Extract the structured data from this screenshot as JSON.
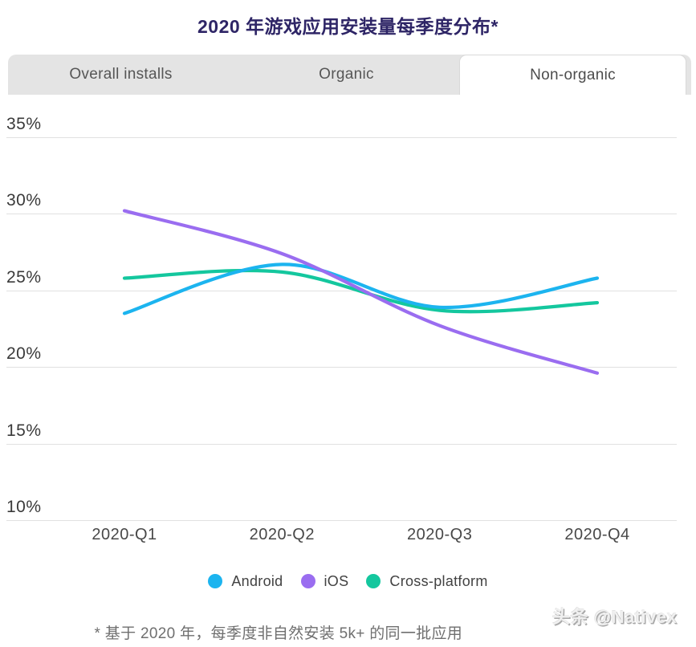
{
  "header": {
    "title": "2020 年游戏应用安装量每季度分布*"
  },
  "tabs": {
    "items": [
      {
        "label": "Overall installs",
        "active": false
      },
      {
        "label": "Organic",
        "active": false
      },
      {
        "label": "Non-organic",
        "active": true
      }
    ]
  },
  "chart_data": {
    "type": "line",
    "title": "2020 年游戏应用安装量每季度分布*",
    "categories": [
      "2020-Q1",
      "2020-Q2",
      "2020-Q3",
      "2020-Q4"
    ],
    "series": [
      {
        "name": "Android",
        "color": "#1cb4ef",
        "values": [
          23.5,
          26.7,
          23.9,
          25.8
        ]
      },
      {
        "name": "iOS",
        "color": "#9a6df0",
        "values": [
          30.2,
          27.4,
          22.7,
          19.6
        ]
      },
      {
        "name": "Cross-platform",
        "color": "#14c79e",
        "values": [
          25.8,
          26.2,
          23.7,
          24.2
        ]
      }
    ],
    "yticks": [
      35,
      30,
      25,
      20,
      15,
      10
    ],
    "ytick_suffix": "%",
    "ylim": [
      10,
      35
    ],
    "xlabel": "",
    "ylabel": "",
    "grid": true,
    "legend_position": "bottom"
  },
  "footnote": {
    "text": "* 基于 2020 年，每季度非自然安装 5k+ 的同一批应用"
  },
  "watermark": {
    "text": "头条 @Nativex"
  }
}
